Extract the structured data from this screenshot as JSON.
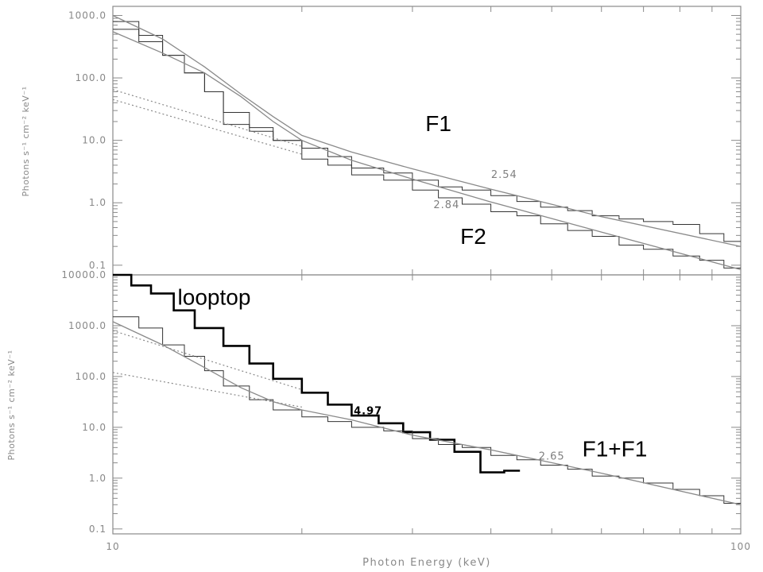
{
  "chart_data": [
    {
      "type": "line",
      "panel": "top",
      "xscale": "log",
      "yscale": "log",
      "xlim": [
        10,
        100
      ],
      "ylim": [
        0.07,
        1400
      ],
      "ylabel": "Photons s⁻¹ cm⁻² keV⁻¹",
      "yticks": [
        0.1,
        1.0,
        10.0,
        100.0,
        1000.0
      ],
      "ytick_labels": [
        "0.1",
        "1.0",
        "10.0",
        "100.0",
        "1000.0"
      ],
      "annotations": [
        {
          "text": "F1",
          "size": "large",
          "x": 33,
          "y": 14
        },
        {
          "text": "F2",
          "size": "large",
          "x": 37.5,
          "y": 0.22
        },
        {
          "text": "2.54",
          "size": "small",
          "x": 42,
          "y": 2.5
        },
        {
          "text": "2.84",
          "size": "small",
          "x": 34,
          "y": 0.82
        }
      ],
      "series": [
        {
          "style": "histogram",
          "edges": [
            10,
            11,
            12,
            13,
            14,
            15,
            16.5,
            18,
            20,
            22,
            24,
            27,
            30,
            33,
            36,
            40,
            44,
            48,
            53,
            58,
            64,
            70,
            78,
            86,
            94,
            100
          ],
          "values": [
            800,
            480,
            230,
            120,
            60,
            28,
            16,
            10,
            7.5,
            5.5,
            3.6,
            3.0,
            2.3,
            1.8,
            1.6,
            1.3,
            1.05,
            0.85,
            0.75,
            0.62,
            0.55,
            0.5,
            0.45,
            0.32,
            0.24
          ]
        },
        {
          "style": "histogram",
          "edges": [
            10,
            11,
            12,
            13,
            14,
            15,
            16.5,
            18,
            20,
            22,
            24,
            27,
            30,
            33,
            36,
            40,
            44,
            48,
            53,
            58,
            64,
            70,
            78,
            86,
            94,
            100
          ],
          "values": [
            600,
            380,
            230,
            120,
            60,
            18,
            14,
            10,
            5.0,
            4.0,
            2.8,
            2.3,
            1.6,
            1.2,
            0.95,
            0.72,
            0.62,
            0.46,
            0.36,
            0.29,
            0.21,
            0.18,
            0.14,
            0.12,
            0.09
          ]
        },
        {
          "style": "fit",
          "x": [
            10,
            12,
            14,
            16,
            18,
            20,
            24,
            30,
            40,
            60,
            100
          ],
          "y": [
            1000,
            420,
            150,
            55,
            24,
            12,
            6.5,
            3.5,
            1.65,
            0.6,
            0.2
          ]
        },
        {
          "style": "fit",
          "x": [
            10,
            12,
            14,
            16,
            18,
            20,
            24,
            30,
            40,
            60,
            100
          ],
          "y": [
            550,
            250,
            120,
            50,
            20,
            10,
            4.8,
            2.4,
            1.03,
            0.34,
            0.085
          ]
        },
        {
          "style": "dotted",
          "x": [
            10,
            20
          ],
          "y": [
            65,
            8
          ]
        },
        {
          "style": "dotted",
          "x": [
            10,
            20
          ],
          "y": [
            45,
            6
          ]
        }
      ]
    },
    {
      "type": "line",
      "panel": "bottom",
      "xscale": "log",
      "yscale": "log",
      "xlim": [
        10,
        100
      ],
      "ylim": [
        0.08,
        10000
      ],
      "xlabel": "Photon Energy (keV)",
      "ylabel": "Photons s⁻¹ cm⁻² keV⁻¹",
      "xticks": [
        10,
        100
      ],
      "xtick_labels": [
        "10",
        "100"
      ],
      "yticks": [
        0.1,
        1.0,
        10.0,
        100.0,
        1000.0,
        10000.0
      ],
      "ytick_labels": [
        "0.1",
        "1.0",
        "10.0",
        "100.0",
        "1000.0",
        "10000.0"
      ],
      "annotations": [
        {
          "text": "looptop",
          "size": "large",
          "x": 14.5,
          "y": 2600
        },
        {
          "text": "F1+F1",
          "size": "large",
          "x": 63,
          "y": 2.7
        },
        {
          "text": "4.97",
          "size": "bold",
          "x": 25.5,
          "y": 18
        },
        {
          "text": "2.65",
          "size": "small",
          "x": 50,
          "y": 2.3
        }
      ],
      "series": [
        {
          "name": "looptop",
          "style": "histogram-bold",
          "edges": [
            10,
            10.7,
            11.5,
            12.5,
            13.5,
            15,
            16.5,
            18,
            20,
            22,
            24,
            26.5,
            29,
            32,
            35,
            38.5,
            42,
            44.5
          ],
          "values": [
            10000,
            6200,
            4300,
            2000,
            900,
            400,
            180,
            90,
            48,
            28,
            17,
            12,
            8,
            5.7,
            3.3,
            1.3,
            1.4
          ]
        },
        {
          "style": "histogram",
          "edges": [
            10,
            11,
            12,
            13,
            14,
            15,
            16.5,
            18,
            20,
            22,
            24,
            27,
            30,
            33,
            36,
            40,
            44,
            48,
            53,
            58,
            64,
            70,
            78,
            86,
            94,
            100
          ],
          "values": [
            1500,
            900,
            420,
            250,
            130,
            65,
            35,
            22,
            16,
            13,
            10,
            8.5,
            6.0,
            4.6,
            4.0,
            2.8,
            2.3,
            1.8,
            1.5,
            1.1,
            1.0,
            0.8,
            0.6,
            0.45,
            0.32
          ]
        },
        {
          "style": "fit",
          "x": [
            10,
            12,
            14,
            16,
            18,
            20,
            24,
            30,
            40,
            60,
            100
          ],
          "y": [
            1200,
            420,
            150,
            60,
            32,
            22,
            14,
            7.0,
            3.6,
            1.25,
            0.3
          ]
        },
        {
          "style": "dotted",
          "x": [
            10,
            20
          ],
          "y": [
            800,
            55
          ]
        },
        {
          "style": "dotted",
          "x": [
            10,
            20
          ],
          "y": [
            120,
            25
          ]
        }
      ]
    }
  ]
}
